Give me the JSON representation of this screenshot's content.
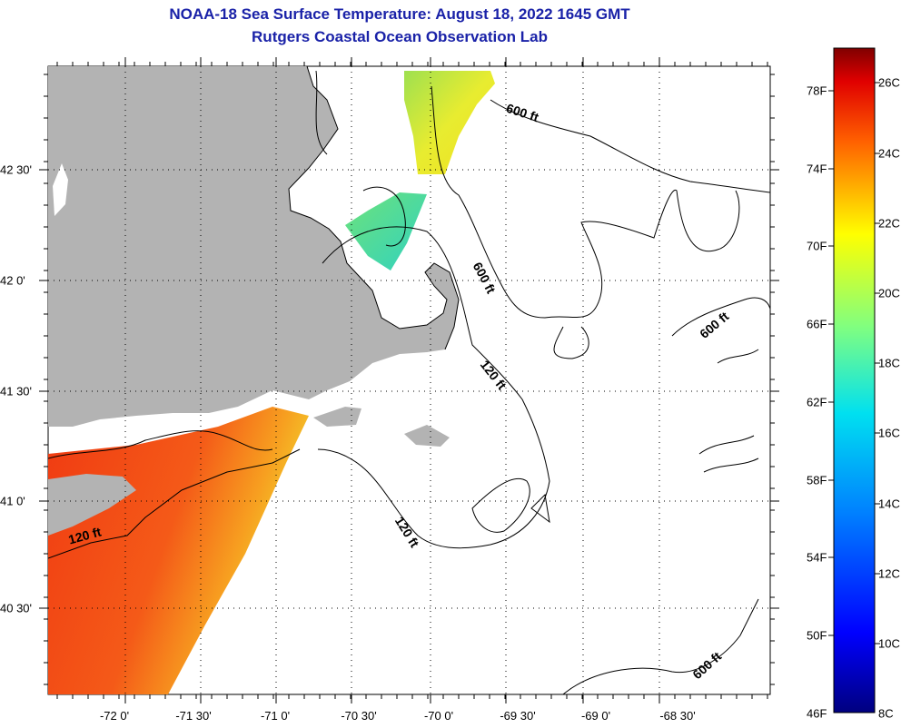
{
  "title": "NOAA-18 Sea Surface Temperature:  August 18, 2022 1645 GMT",
  "subtitle": "Rutgers Coastal Ocean Observation Lab",
  "map": {
    "lon_ticks": [
      "-72 0'",
      "-71 30'",
      "-71 0'",
      "-70 30'",
      "-70 0'",
      "-69 30'",
      "-69 0'",
      "-68 30'"
    ],
    "lat_ticks": [
      "42 30'",
      "42 0'",
      "41 30'",
      "41 0'",
      "40 30'"
    ],
    "contour_labels": [
      "600 ft",
      "600 ft",
      "600 ft",
      "600 ft",
      "120 ft",
      "120 ft",
      "120 ft"
    ]
  },
  "colorbar": {
    "fahrenheit": [
      "78F",
      "74F",
      "70F",
      "66F",
      "62F",
      "58F",
      "54F",
      "50F",
      "46F"
    ],
    "celsius": [
      "26C",
      "24C",
      "22C",
      "20C",
      "18C",
      "16C",
      "14C",
      "12C",
      "10C",
      "8C"
    ]
  },
  "colors": {
    "title": "#1a22a8",
    "land": "#b3b3b3",
    "warm": "#f04a15",
    "cool": "#48d6a0"
  }
}
